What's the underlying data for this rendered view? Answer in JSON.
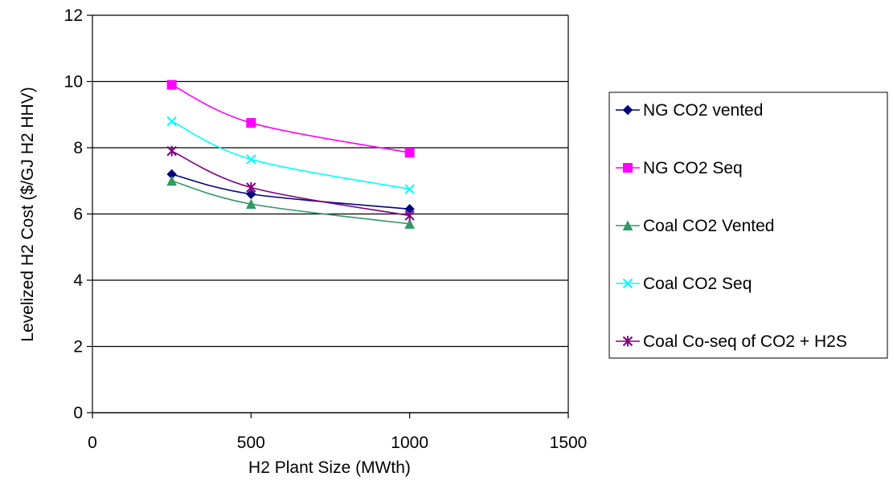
{
  "chart_data": {
    "type": "line",
    "title": "",
    "xlabel": "H2 Plant Size (MWth)",
    "ylabel": "Levelized H2 Cost ($/GJ H2 HHV)",
    "xlim": [
      0,
      1500
    ],
    "ylim": [
      0,
      12
    ],
    "x_ticks": [
      "0",
      "500",
      "1000",
      "1500"
    ],
    "y_ticks": [
      "0",
      "2",
      "4",
      "6",
      "8",
      "10",
      "12"
    ],
    "grid": "horizontal",
    "legend_position": "right",
    "x": [
      250,
      500,
      1000
    ],
    "series": [
      {
        "name": "NG CO2 vented",
        "values": [
          7.2,
          6.6,
          6.15
        ],
        "color": "#000080",
        "marker": "diamond"
      },
      {
        "name": "NG CO2 Seq",
        "values": [
          9.9,
          8.75,
          7.85
        ],
        "color": "#FF00FF",
        "marker": "square"
      },
      {
        "name": "Coal CO2 Vented",
        "values": [
          7.0,
          6.3,
          5.7
        ],
        "color": "#339966",
        "marker": "triangle"
      },
      {
        "name": "Coal CO2 Seq",
        "values": [
          8.8,
          7.65,
          6.75
        ],
        "color": "#00FFFF",
        "marker": "x"
      },
      {
        "name": "Coal Co-seq of CO2 + H2S",
        "values": [
          7.9,
          6.8,
          5.95
        ],
        "color": "#800080",
        "marker": "star"
      }
    ]
  }
}
